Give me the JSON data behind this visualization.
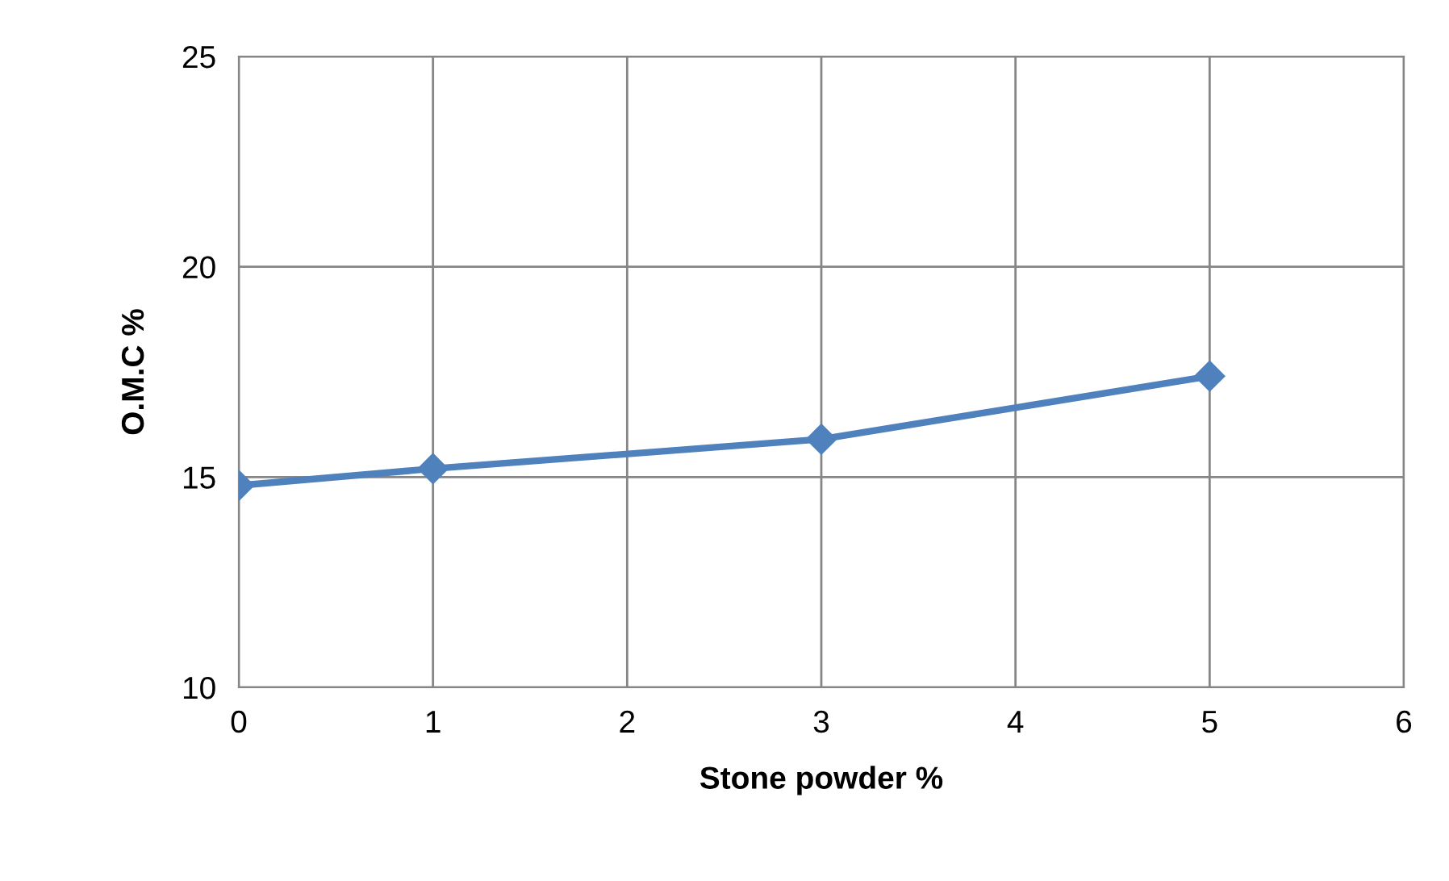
{
  "chart_data": {
    "type": "line",
    "xlabel": "Stone powder %",
    "ylabel": "O.M.C %",
    "x": [
      0,
      1,
      3,
      5
    ],
    "series": [
      {
        "color": "#4f81bd",
        "values": [
          14.8,
          15.2,
          15.9,
          17.4
        ]
      }
    ],
    "xlim": [
      0,
      6
    ],
    "xticks": [
      0,
      1,
      2,
      3,
      4,
      5,
      6
    ],
    "ylim": [
      10,
      25
    ],
    "yticks": [
      10,
      15,
      20,
      25
    ],
    "grid": true,
    "marker": "diamond",
    "line_style": "solid",
    "legend": false
  }
}
